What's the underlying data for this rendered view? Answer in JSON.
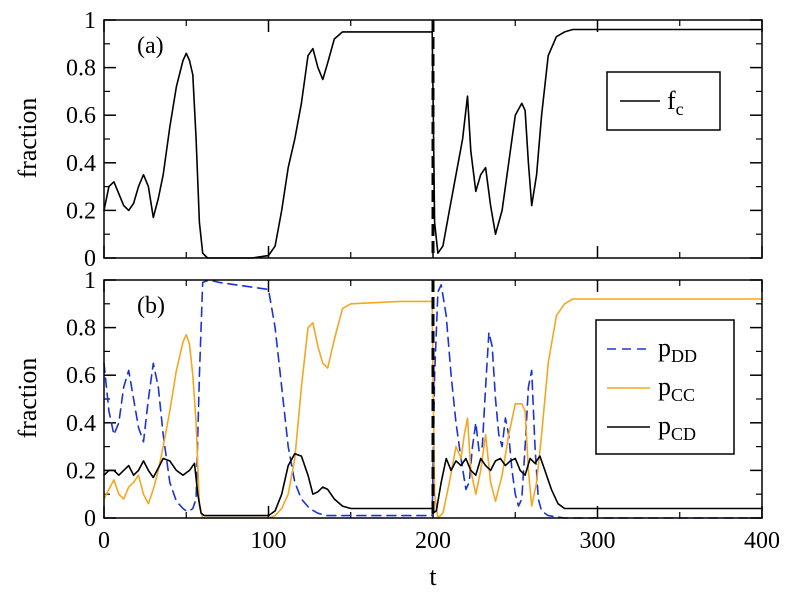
{
  "chart_data": [
    {
      "type": "line",
      "panel_label": "(a)",
      "xlabel": "",
      "ylabel": "fraction",
      "xlim": [
        0,
        400
      ],
      "ylim": [
        0,
        1
      ],
      "xticks": [
        "0",
        "100",
        "200",
        "300",
        "400"
      ],
      "yticks": [
        "0",
        "0.2",
        "0.4",
        "0.6",
        "0.8",
        "1"
      ],
      "show_xtick_labels": false,
      "vline_x": 200,
      "legend_position": "top-right",
      "series": [
        {
          "name": "f",
          "name_sub": "c",
          "color": "#000000",
          "dash": "solid",
          "x": [
            0,
            3,
            6,
            9,
            12,
            15,
            18,
            21,
            24,
            27,
            30,
            33,
            36,
            40,
            44,
            48,
            50,
            52,
            54,
            56,
            58,
            60,
            63,
            70,
            80,
            90,
            100,
            104,
            108,
            112,
            116,
            120,
            124,
            127,
            130,
            133,
            136,
            140,
            145,
            150,
            160,
            180,
            199.5,
            200,
            201,
            203,
            206,
            210,
            214,
            218,
            221,
            223,
            226,
            229,
            232,
            235,
            238,
            242,
            246,
            250,
            254,
            256,
            258,
            260,
            263,
            266,
            270,
            275,
            280,
            285,
            290,
            300,
            320,
            360,
            400
          ],
          "y": [
            0.2,
            0.3,
            0.32,
            0.27,
            0.22,
            0.2,
            0.23,
            0.3,
            0.35,
            0.3,
            0.17,
            0.25,
            0.35,
            0.55,
            0.72,
            0.83,
            0.86,
            0.83,
            0.77,
            0.5,
            0.15,
            0.02,
            0.0,
            0.0,
            0.0,
            0.0,
            0.01,
            0.05,
            0.2,
            0.38,
            0.5,
            0.65,
            0.85,
            0.88,
            0.8,
            0.75,
            0.82,
            0.92,
            0.95,
            0.95,
            0.95,
            0.95,
            0.95,
            0.7,
            0.15,
            0.02,
            0.05,
            0.2,
            0.35,
            0.5,
            0.68,
            0.45,
            0.28,
            0.35,
            0.38,
            0.22,
            0.1,
            0.2,
            0.4,
            0.6,
            0.65,
            0.62,
            0.4,
            0.22,
            0.35,
            0.6,
            0.85,
            0.93,
            0.95,
            0.96,
            0.96,
            0.96,
            0.96,
            0.96,
            0.96
          ]
        }
      ]
    },
    {
      "type": "line",
      "panel_label": "(b)",
      "xlabel": "t",
      "ylabel": "fraction",
      "xlim": [
        0,
        400
      ],
      "ylim": [
        0,
        1
      ],
      "xticks": [
        "0",
        "100",
        "200",
        "300",
        "400"
      ],
      "yticks": [
        "0",
        "0.2",
        "0.4",
        "0.6",
        "0.8",
        "1"
      ],
      "show_xtick_labels": true,
      "vline_x": 200,
      "legend_position": "right",
      "series": [
        {
          "name": "p",
          "name_sub": "DD",
          "color": "#1b33d6",
          "dash": "dashed",
          "x": [
            0,
            3,
            6,
            9,
            12,
            15,
            18,
            21,
            24,
            27,
            30,
            33,
            36,
            40,
            44,
            48,
            50,
            52,
            54,
            56,
            58,
            60,
            64,
            70,
            80,
            90,
            100,
            104,
            108,
            112,
            116,
            120,
            125,
            130,
            135,
            140,
            150,
            180,
            199.5,
            200,
            201,
            203,
            205,
            208,
            211,
            214,
            217,
            220,
            222,
            224,
            226,
            228,
            230,
            232,
            234,
            236,
            238,
            240,
            242,
            244,
            246,
            248,
            250,
            252,
            254,
            256,
            258,
            260,
            262,
            264,
            266,
            270,
            280,
            300,
            400
          ],
          "y": [
            0.65,
            0.45,
            0.35,
            0.4,
            0.55,
            0.62,
            0.5,
            0.38,
            0.32,
            0.5,
            0.65,
            0.55,
            0.35,
            0.15,
            0.07,
            0.04,
            0.03,
            0.03,
            0.04,
            0.08,
            0.6,
            0.99,
            1.0,
            0.99,
            0.98,
            0.97,
            0.96,
            0.8,
            0.55,
            0.3,
            0.15,
            0.08,
            0.04,
            0.02,
            0.01,
            0.01,
            0.01,
            0.01,
            0.01,
            0.2,
            0.6,
            0.95,
            0.98,
            0.85,
            0.6,
            0.4,
            0.25,
            0.12,
            0.15,
            0.3,
            0.4,
            0.28,
            0.3,
            0.55,
            0.78,
            0.72,
            0.5,
            0.35,
            0.3,
            0.42,
            0.35,
            0.2,
            0.1,
            0.05,
            0.08,
            0.3,
            0.55,
            0.62,
            0.3,
            0.08,
            0.03,
            0.01,
            0.0,
            0.0,
            0.0
          ]
        },
        {
          "name": "p",
          "name_sub": "CC",
          "color": "#f5a623",
          "dash": "solid",
          "x": [
            0,
            3,
            6,
            9,
            12,
            15,
            18,
            21,
            24,
            27,
            30,
            33,
            36,
            40,
            44,
            48,
            50,
            52,
            54,
            56,
            58,
            60,
            64,
            80,
            100,
            104,
            108,
            112,
            116,
            120,
            124,
            127,
            130,
            133,
            136,
            140,
            145,
            150,
            180,
            199.5,
            200,
            201,
            203,
            206,
            210,
            214,
            217,
            219,
            221,
            223,
            226,
            229,
            232,
            235,
            238,
            242,
            246,
            250,
            254,
            256,
            258,
            260,
            263,
            266,
            270,
            275,
            280,
            285,
            290,
            300,
            400
          ],
          "y": [
            0.08,
            0.12,
            0.16,
            0.1,
            0.08,
            0.13,
            0.15,
            0.18,
            0.1,
            0.06,
            0.12,
            0.2,
            0.3,
            0.45,
            0.62,
            0.74,
            0.77,
            0.73,
            0.6,
            0.4,
            0.05,
            0.0,
            0.0,
            0.0,
            0.0,
            0.01,
            0.04,
            0.1,
            0.25,
            0.55,
            0.8,
            0.82,
            0.72,
            0.65,
            0.63,
            0.75,
            0.88,
            0.9,
            0.91,
            0.91,
            0.6,
            0.1,
            0.0,
            0.02,
            0.15,
            0.3,
            0.25,
            0.35,
            0.42,
            0.2,
            0.1,
            0.2,
            0.35,
            0.15,
            0.07,
            0.18,
            0.35,
            0.48,
            0.48,
            0.45,
            0.2,
            0.05,
            0.15,
            0.35,
            0.65,
            0.85,
            0.9,
            0.92,
            0.92,
            0.92,
            0.92
          ]
        },
        {
          "name": "p",
          "name_sub": "CD",
          "color": "#000000",
          "dash": "solid",
          "x": [
            0,
            3,
            6,
            9,
            12,
            15,
            18,
            21,
            24,
            27,
            30,
            33,
            36,
            40,
            44,
            48,
            52,
            55,
            57,
            59,
            61,
            64,
            80,
            100,
            104,
            108,
            112,
            116,
            120,
            124,
            127,
            130,
            133,
            136,
            140,
            145,
            150,
            180,
            199.5,
            200,
            202,
            205,
            208,
            211,
            214,
            217,
            220,
            223,
            226,
            229,
            232,
            235,
            238,
            241,
            244,
            247,
            250,
            253,
            256,
            259,
            262,
            265,
            268,
            272,
            276,
            280,
            290,
            300,
            400
          ],
          "y": [
            0.18,
            0.2,
            0.2,
            0.18,
            0.2,
            0.22,
            0.18,
            0.2,
            0.24,
            0.2,
            0.17,
            0.21,
            0.25,
            0.24,
            0.2,
            0.18,
            0.2,
            0.23,
            0.1,
            0.02,
            0.01,
            0.01,
            0.01,
            0.01,
            0.03,
            0.1,
            0.22,
            0.27,
            0.26,
            0.18,
            0.1,
            0.11,
            0.13,
            0.12,
            0.08,
            0.05,
            0.04,
            0.04,
            0.04,
            0.02,
            0.03,
            0.15,
            0.25,
            0.2,
            0.24,
            0.22,
            0.25,
            0.2,
            0.18,
            0.25,
            0.22,
            0.2,
            0.24,
            0.25,
            0.22,
            0.24,
            0.25,
            0.2,
            0.18,
            0.25,
            0.23,
            0.26,
            0.2,
            0.12,
            0.06,
            0.04,
            0.04,
            0.04,
            0.04
          ]
        }
      ]
    }
  ]
}
